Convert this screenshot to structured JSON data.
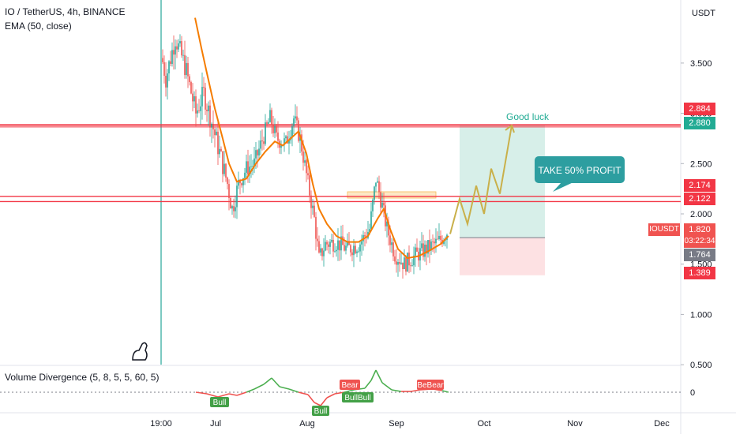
{
  "header": {
    "symbol_title": "IO / TetherUS, 4h, BINANCE",
    "indicator_ema": "EMA (50, close)",
    "indicator_volume": "Volume Divergence (5, 8, 5, 5, 60, 5)"
  },
  "price_axis": {
    "currency": "USDT",
    "ticks": [
      "3.500",
      "3.000",
      "2.500",
      "2.000",
      "1.500",
      "1.000",
      "0.500"
    ],
    "tick_values": [
      3.5,
      3.0,
      2.5,
      2.0,
      1.5,
      1.0,
      0.5
    ]
  },
  "volume_axis": {
    "zero_label": "0"
  },
  "time_axis": {
    "labels": [
      "19:00",
      "Jul",
      "Aug",
      "Sep",
      "Oct",
      "Nov",
      "Dec"
    ]
  },
  "price_labels": {
    "level_upper_1": {
      "text": "2.884",
      "color": "#f23645"
    },
    "level_upper_2": {
      "text": "2.880",
      "color": "#22ab94"
    },
    "level_mid_1": {
      "text": "2.174",
      "color": "#f23645"
    },
    "level_mid_2": {
      "text": "2.122",
      "color": "#f23645"
    },
    "current_price": {
      "text": "1.820",
      "color": "#f05350"
    },
    "countdown": {
      "text": "03:22:34",
      "color": "#f05350"
    },
    "entry": {
      "text": "1.764",
      "color": "#787b86"
    },
    "stop": {
      "text": "1.389",
      "color": "#f23645"
    },
    "symbol_tag": {
      "text": "IOUSDT",
      "color": "#f05350"
    }
  },
  "annotations": {
    "good_luck": "Good luck",
    "callout": "TAKE 50% PROFIT",
    "bull_1": "Bull",
    "bull_2": "BullBull",
    "bull_3": "Bull",
    "bear_1": "Bear",
    "bear_2": "BeBear"
  },
  "chart_data": {
    "type": "candlestick",
    "title": "IO / TetherUS, 4h, BINANCE",
    "ylim": [
      0.5,
      3.9
    ],
    "horizontal_levels": [
      2.884,
      2.88,
      2.174,
      2.122
    ],
    "position": {
      "entry": 1.764,
      "target": 2.88,
      "stop": 1.389
    },
    "current_price": 1.82,
    "ema_period": 50,
    "path": [
      [
        "19:00",
        3.6
      ],
      [
        "mid-Jun",
        3.3
      ],
      [
        "late-Jun",
        2.7
      ],
      [
        "Jul",
        2.05
      ],
      [
        "early-Jul",
        2.35
      ],
      [
        "mid-Jul",
        2.95
      ],
      [
        "late-Jul",
        2.85
      ],
      [
        "Aug",
        1.55
      ],
      [
        "mid-Aug",
        1.75
      ],
      [
        "late-Aug",
        2.4
      ],
      [
        "Sep",
        1.5
      ],
      [
        "mid-Sep",
        1.75
      ],
      [
        "late-Sep",
        1.85
      ]
    ],
    "colors": {
      "up": "#26a69a",
      "down": "#ef5350",
      "ema": "#f57c00"
    }
  },
  "colors": {
    "bull": "#26a69a",
    "bear": "#ef5350",
    "level_line": "#f23645",
    "target_zone": "#d7efe9",
    "stop_zone": "#fde1e3",
    "projection": "#c9b04a",
    "callout_bg": "#2d9ea0"
  }
}
